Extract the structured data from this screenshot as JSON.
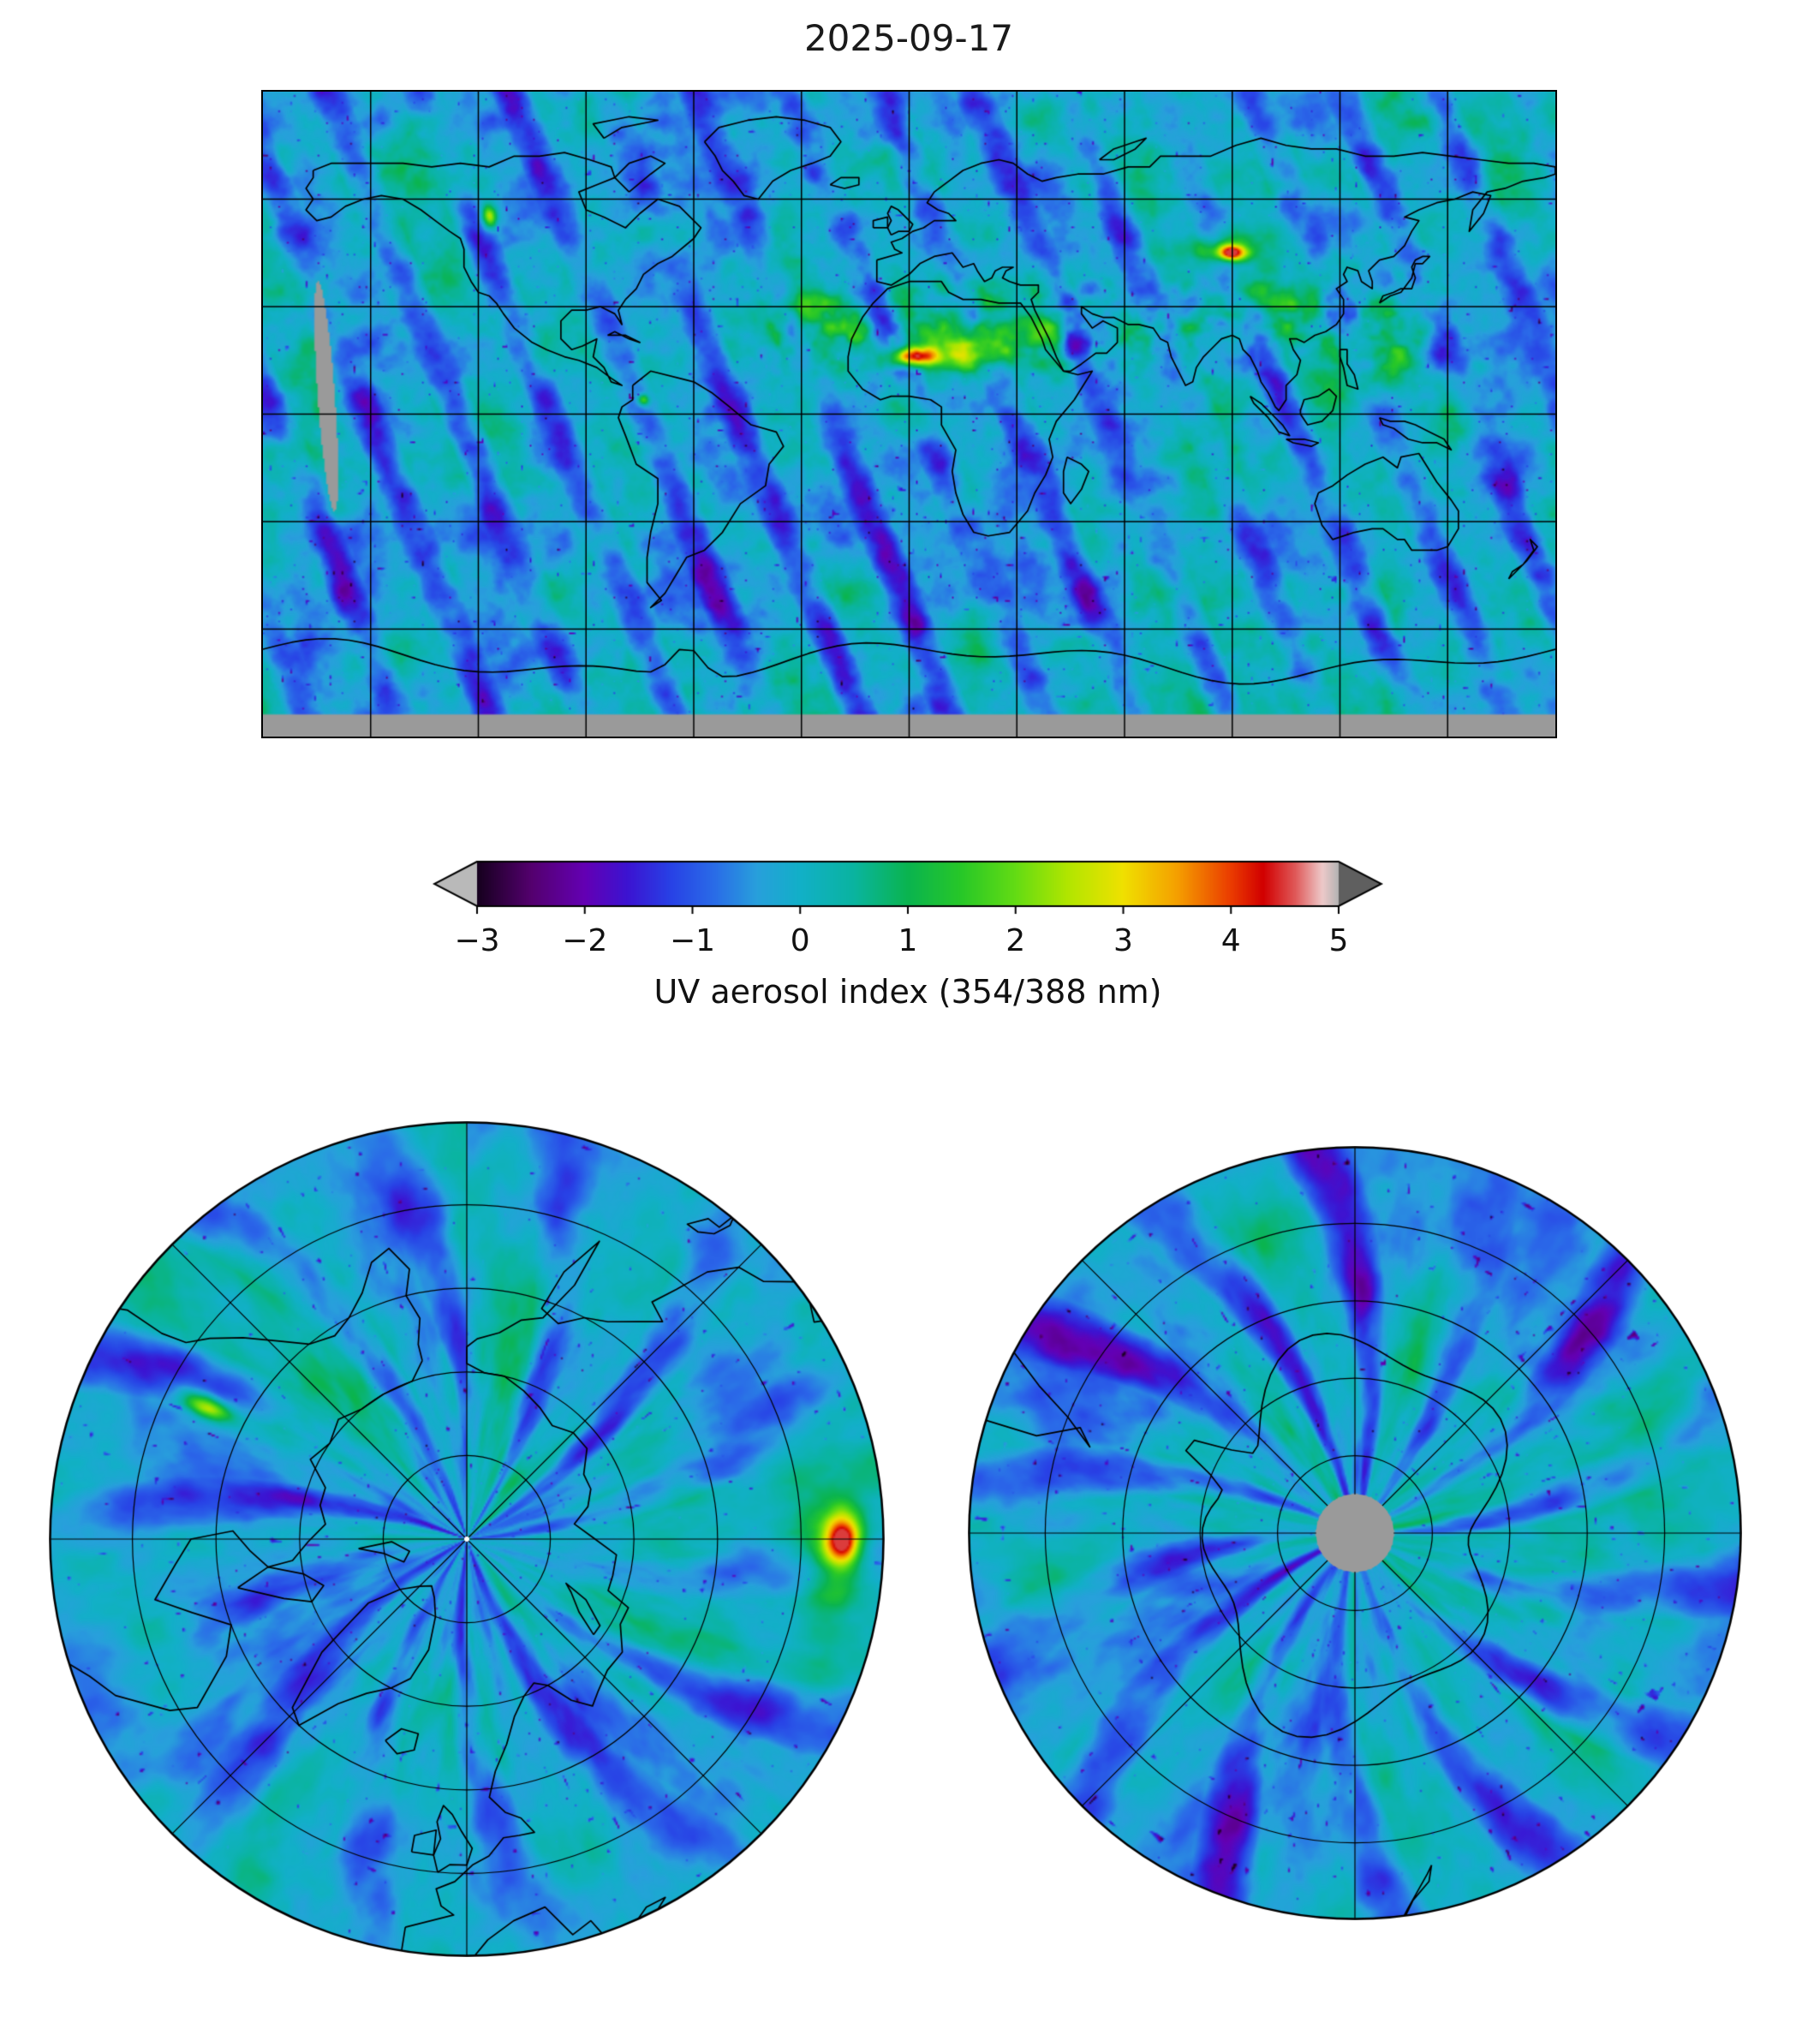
{
  "title": "2025-09-17",
  "colorbar": {
    "label": "UV aerosol index (354/388 nm)",
    "tick_labels": [
      "−3",
      "−2",
      "−1",
      "0",
      "1",
      "2",
      "3",
      "4",
      "5"
    ],
    "tick_values": [
      -3,
      -2,
      -1,
      0,
      1,
      2,
      3,
      4,
      5
    ],
    "range": [
      -3,
      5
    ],
    "under_arrow_color": "#b9b9b9",
    "over_arrow_color": "#5f5f5f",
    "stops": [
      [
        -3.0,
        "#16001e"
      ],
      [
        -2.5,
        "#54006e"
      ],
      [
        -2.0,
        "#6400b4"
      ],
      [
        -1.6,
        "#3c14d2"
      ],
      [
        -1.2,
        "#2842e6"
      ],
      [
        -0.8,
        "#2a6ce8"
      ],
      [
        -0.4,
        "#28a0dc"
      ],
      [
        0.0,
        "#12b0c8"
      ],
      [
        0.5,
        "#0ab4a0"
      ],
      [
        1.0,
        "#0ab450"
      ],
      [
        1.5,
        "#28c828"
      ],
      [
        2.0,
        "#64dc14"
      ],
      [
        2.5,
        "#b4e600"
      ],
      [
        3.0,
        "#f0e100"
      ],
      [
        3.5,
        "#f5a000"
      ],
      [
        4.0,
        "#eb3c00"
      ],
      [
        4.3,
        "#d20000"
      ],
      [
        4.6,
        "#e05a5a"
      ],
      [
        4.85,
        "#eecaca"
      ],
      [
        5.0,
        "#b4b4b4"
      ]
    ]
  },
  "chart_data": {
    "type": "heatmap",
    "title": "2025-09-17",
    "variable": "UV aerosol index (354/388 nm)",
    "value_range": [
      -3,
      5
    ],
    "colormap_extend": "both",
    "panels": [
      {
        "name": "global-map",
        "projection": "equirectangular",
        "lon_range": [
          -180,
          180
        ],
        "lat_range": [
          -90,
          90
        ],
        "grid_spacing_deg": 30
      },
      {
        "name": "north-polar-map",
        "projection": "polar-stereographic-north",
        "edge_latitude": 40,
        "parallels": [
          50,
          60,
          70,
          80
        ],
        "meridians_every_deg": 45
      },
      {
        "name": "south-polar-map",
        "projection": "polar-stereographic-south",
        "edge_latitude": -40,
        "parallels": [
          -50,
          -60,
          -70,
          -80
        ],
        "meridians_every_deg": 45,
        "pole_no_data_lat": -85
      }
    ],
    "no_data": {
      "color": "#9a9a9a",
      "south_of_lat": -84,
      "swath_gap_lon": -162
    },
    "background_level": 0.12,
    "dust_band": {
      "lat_center": 24,
      "lat_sigma": 15,
      "lon_min": -25,
      "lon_max": 135,
      "amp": 2.1
    },
    "hotspots": [
      {
        "name": "west-africa-dust",
        "lon": 1,
        "lat": 16,
        "sx": 7,
        "sy": 2.6,
        "amp": 4.2
      },
      {
        "name": "west-africa-dust-halo",
        "lon": 10,
        "lat": 20,
        "sx": 18,
        "sy": 6,
        "amp": 1.3
      },
      {
        "name": "central-asia-smoke",
        "lon": 90,
        "lat": 45,
        "sx": 4,
        "sy": 2.2,
        "amp": 4.4
      },
      {
        "name": "central-asia-halo",
        "lon": 86,
        "lat": 46,
        "sx": 13,
        "sy": 4.5,
        "amp": 1.4
      },
      {
        "name": "western-canada-smoke",
        "lon": -117,
        "lat": 55,
        "sx": 2.2,
        "sy": 3.2,
        "amp": 2.8
      },
      {
        "name": "northern-south-america",
        "lon": -74,
        "lat": 4,
        "sx": 1.6,
        "sy": 1.6,
        "amp": 2.4
      }
    ]
  }
}
